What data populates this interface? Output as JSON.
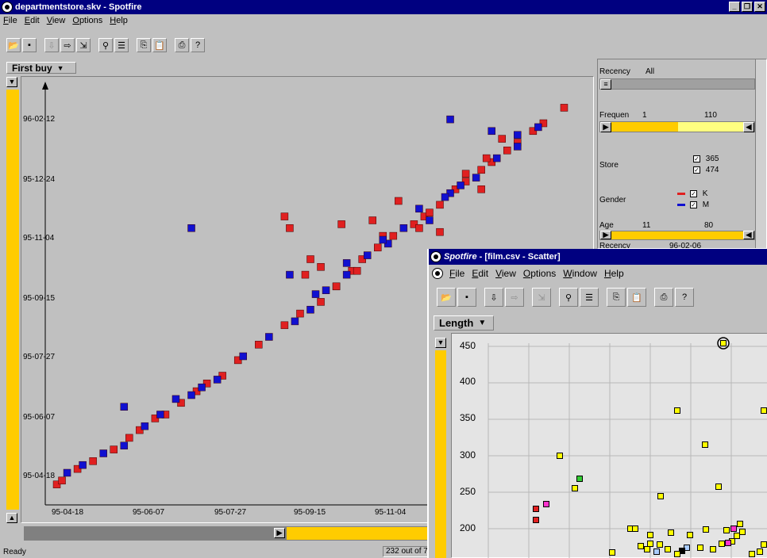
{
  "main_window": {
    "title": "departmentstore.skv - Spotfire",
    "menu": [
      "File",
      "Edit",
      "View",
      "Options",
      "Help"
    ],
    "y_axis_label": "First buy",
    "y_ticks": [
      "96-02-12",
      "95-12-24",
      "95-11-04",
      "95-09-15",
      "95-07-27",
      "95-06-07",
      "95-04-18"
    ],
    "x_ticks": [
      "95-04-18",
      "95-06-07",
      "95-07-27",
      "95-09-15",
      "95-11-04"
    ],
    "status_left": "Ready",
    "status_count": "232 out of 7"
  },
  "query_panel": {
    "recency": {
      "label": "Recency",
      "value": "All"
    },
    "frequency": {
      "label": "Frequen",
      "min": "1",
      "max": "110"
    },
    "store": {
      "label": "Store",
      "options": [
        "365",
        "474"
      ]
    },
    "gender": {
      "label": "Gender",
      "options": [
        "K",
        "M"
      ]
    },
    "age": {
      "label": "Age",
      "min": "11",
      "max": "80"
    },
    "recency_bottom": {
      "label": "Recency",
      "value": "96-02-06"
    }
  },
  "film_window": {
    "title_app": "Spotfire",
    "title_rest": " - [film.csv - Scatter]",
    "menu": [
      "File",
      "Edit",
      "View",
      "Options",
      "Window",
      "Help"
    ],
    "y_axis_label": "Length",
    "y_ticks": [
      "450",
      "400",
      "350",
      "300",
      "250",
      "200"
    ]
  },
  "colors": {
    "accent": "#ffcc00",
    "title": "#000080",
    "red": "#e02020",
    "blue": "#1010d0"
  },
  "chart_data": {
    "type": "scatter",
    "ylabel": "First buy",
    "series": [
      {
        "name": "K",
        "color": "#e02020",
        "points": [
          [
            0.01,
            0.02
          ],
          [
            0.02,
            0.03
          ],
          [
            0.05,
            0.06
          ],
          [
            0.08,
            0.08
          ],
          [
            0.12,
            0.11
          ],
          [
            0.15,
            0.14
          ],
          [
            0.17,
            0.16
          ],
          [
            0.2,
            0.19
          ],
          [
            0.22,
            0.2
          ],
          [
            0.25,
            0.23
          ],
          [
            0.28,
            0.26
          ],
          [
            0.3,
            0.28
          ],
          [
            0.33,
            0.3
          ],
          [
            0.36,
            0.34
          ],
          [
            0.4,
            0.38
          ],
          [
            0.45,
            0.43
          ],
          [
            0.48,
            0.46
          ],
          [
            0.52,
            0.49
          ],
          [
            0.55,
            0.53
          ],
          [
            0.58,
            0.57
          ],
          [
            0.6,
            0.6
          ],
          [
            0.63,
            0.63
          ],
          [
            0.66,
            0.66
          ],
          [
            0.7,
            0.69
          ],
          [
            0.72,
            0.71
          ],
          [
            0.75,
            0.74
          ],
          [
            0.78,
            0.78
          ],
          [
            0.8,
            0.8
          ],
          [
            0.83,
            0.83
          ],
          [
            0.85,
            0.85
          ],
          [
            0.88,
            0.88
          ],
          [
            0.9,
            0.9
          ],
          [
            0.93,
            0.93
          ],
          [
            0.99,
            0.99
          ],
          [
            0.45,
            0.71
          ],
          [
            0.46,
            0.68
          ],
          [
            0.49,
            0.56
          ],
          [
            0.5,
            0.6
          ],
          [
            0.52,
            0.58
          ],
          [
            0.56,
            0.69
          ],
          [
            0.59,
            0.57
          ],
          [
            0.55,
            0.53
          ],
          [
            0.62,
            0.7
          ],
          [
            0.64,
            0.66
          ],
          [
            0.67,
            0.75
          ],
          [
            0.71,
            0.68
          ],
          [
            0.73,
            0.72
          ],
          [
            0.75,
            0.67
          ],
          [
            0.8,
            0.82
          ],
          [
            0.83,
            0.78
          ],
          [
            0.84,
            0.86
          ],
          [
            0.87,
            0.91
          ],
          [
            0.95,
            0.95
          ]
        ]
      },
      {
        "name": "M",
        "color": "#1010d0",
        "points": [
          [
            0.03,
            0.05
          ],
          [
            0.06,
            0.07
          ],
          [
            0.1,
            0.1
          ],
          [
            0.14,
            0.12
          ],
          [
            0.18,
            0.17
          ],
          [
            0.21,
            0.2
          ],
          [
            0.24,
            0.24
          ],
          [
            0.27,
            0.25
          ],
          [
            0.29,
            0.27
          ],
          [
            0.32,
            0.29
          ],
          [
            0.37,
            0.35
          ],
          [
            0.42,
            0.4
          ],
          [
            0.47,
            0.44
          ],
          [
            0.5,
            0.47
          ],
          [
            0.53,
            0.52
          ],
          [
            0.57,
            0.56
          ],
          [
            0.61,
            0.61
          ],
          [
            0.65,
            0.64
          ],
          [
            0.68,
            0.68
          ],
          [
            0.73,
            0.7
          ],
          [
            0.77,
            0.77
          ],
          [
            0.82,
            0.81
          ],
          [
            0.86,
            0.86
          ],
          [
            0.9,
            0.89
          ],
          [
            0.94,
            0.94
          ],
          [
            0.14,
            0.22
          ],
          [
            0.27,
            0.68
          ],
          [
            0.46,
            0.56
          ],
          [
            0.51,
            0.51
          ],
          [
            0.57,
            0.59
          ],
          [
            0.64,
            0.65
          ],
          [
            0.71,
            0.73
          ],
          [
            0.76,
            0.76
          ],
          [
            0.79,
            0.79
          ],
          [
            0.85,
            0.93
          ],
          [
            0.9,
            0.92
          ],
          [
            0.77,
            0.96
          ]
        ]
      }
    ]
  }
}
